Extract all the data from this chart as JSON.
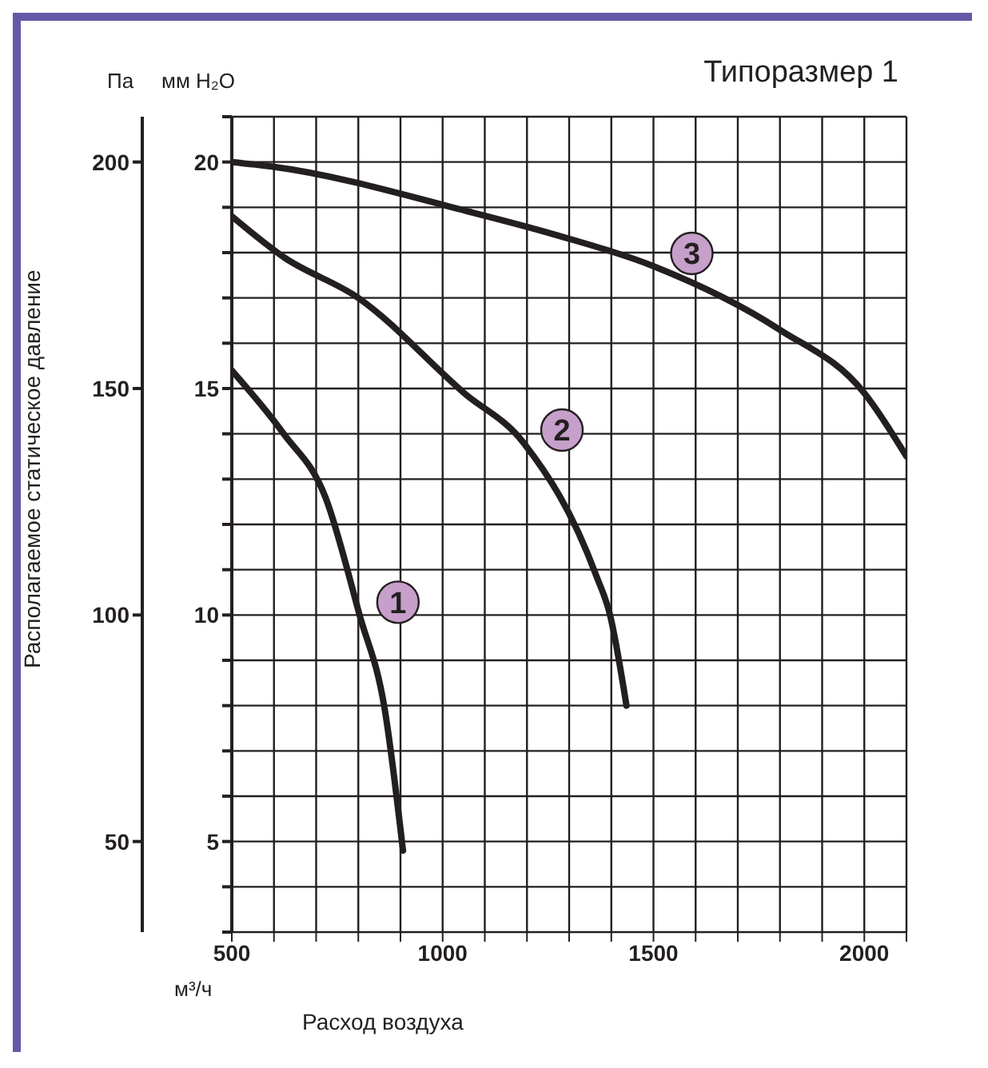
{
  "chart_data": {
    "type": "line",
    "title": "Типоразмер 1",
    "xlabel": "Расход воздуха",
    "ylabel": "Располагаемое статическое давление",
    "y2label": "мм H₂O",
    "annotations": [
      "Па",
      "м³/ч"
    ],
    "series": [
      {
        "name": "1",
        "color": "#231f20",
        "x": [
          500,
          623,
          722,
          803,
          863,
          906
        ],
        "values": [
          154,
          140,
          126,
          100,
          79,
          48
        ]
      },
      {
        "name": "2",
        "color": "#231f20",
        "x": [
          500,
          623,
          800,
          1051,
          1192,
          1363,
          1397,
          1436
        ],
        "values": [
          188,
          179,
          170,
          149,
          138,
          109,
          100,
          80
        ]
      },
      {
        "name": "3",
        "color": "#231f20",
        "x": [
          500,
          594,
          1064,
          1265,
          1500,
          1799,
          2000,
          2100
        ],
        "values": [
          200,
          199,
          189,
          184,
          177,
          163,
          149,
          135
        ]
      }
    ],
    "xlim": [
      500,
      2100
    ],
    "xticks": [
      500,
      {
        "value": 600,
        "label": null
      },
      {
        "value": 700,
        "label": null
      },
      {
        "value": 800,
        "label": null
      },
      {
        "value": 900,
        "label": null
      },
      1000,
      {
        "value": 1100,
        "label": null
      },
      {
        "value": 1200,
        "label": null
      },
      {
        "value": 1300,
        "label": null
      },
      {
        "value": 1400,
        "label": null
      },
      1500,
      {
        "value": 1600,
        "label": null
      },
      {
        "value": 1700,
        "label": null
      },
      {
        "value": 1800,
        "label": null
      },
      {
        "value": 1900,
        "label": null
      },
      2000,
      {
        "value": 2100,
        "label": null
      }
    ],
    "ylim": [
      30,
      210
    ],
    "yticks": [
      50,
      100,
      150,
      200
    ],
    "y2lim": [
      3,
      21
    ],
    "y2ticks": [
      {
        "value": 3,
        "label": null
      },
      {
        "value": 4,
        "label": null
      },
      5,
      {
        "value": 6,
        "label": null
      },
      {
        "value": 7,
        "label": null
      },
      {
        "value": 8,
        "label": null
      },
      {
        "value": 9,
        "label": null
      },
      10,
      {
        "value": 11,
        "label": null
      },
      {
        "value": 12,
        "label": null
      },
      {
        "value": 13,
        "label": null
      },
      {
        "value": 14,
        "label": null
      },
      15,
      {
        "value": 16,
        "label": null
      },
      {
        "value": 17,
        "label": null
      },
      {
        "value": 18,
        "label": null
      },
      {
        "value": 19,
        "label": null
      },
      20,
      {
        "value": 21,
        "label": null
      }
    ],
    "grid": true,
    "marker": "none",
    "line_style": "solid"
  }
}
